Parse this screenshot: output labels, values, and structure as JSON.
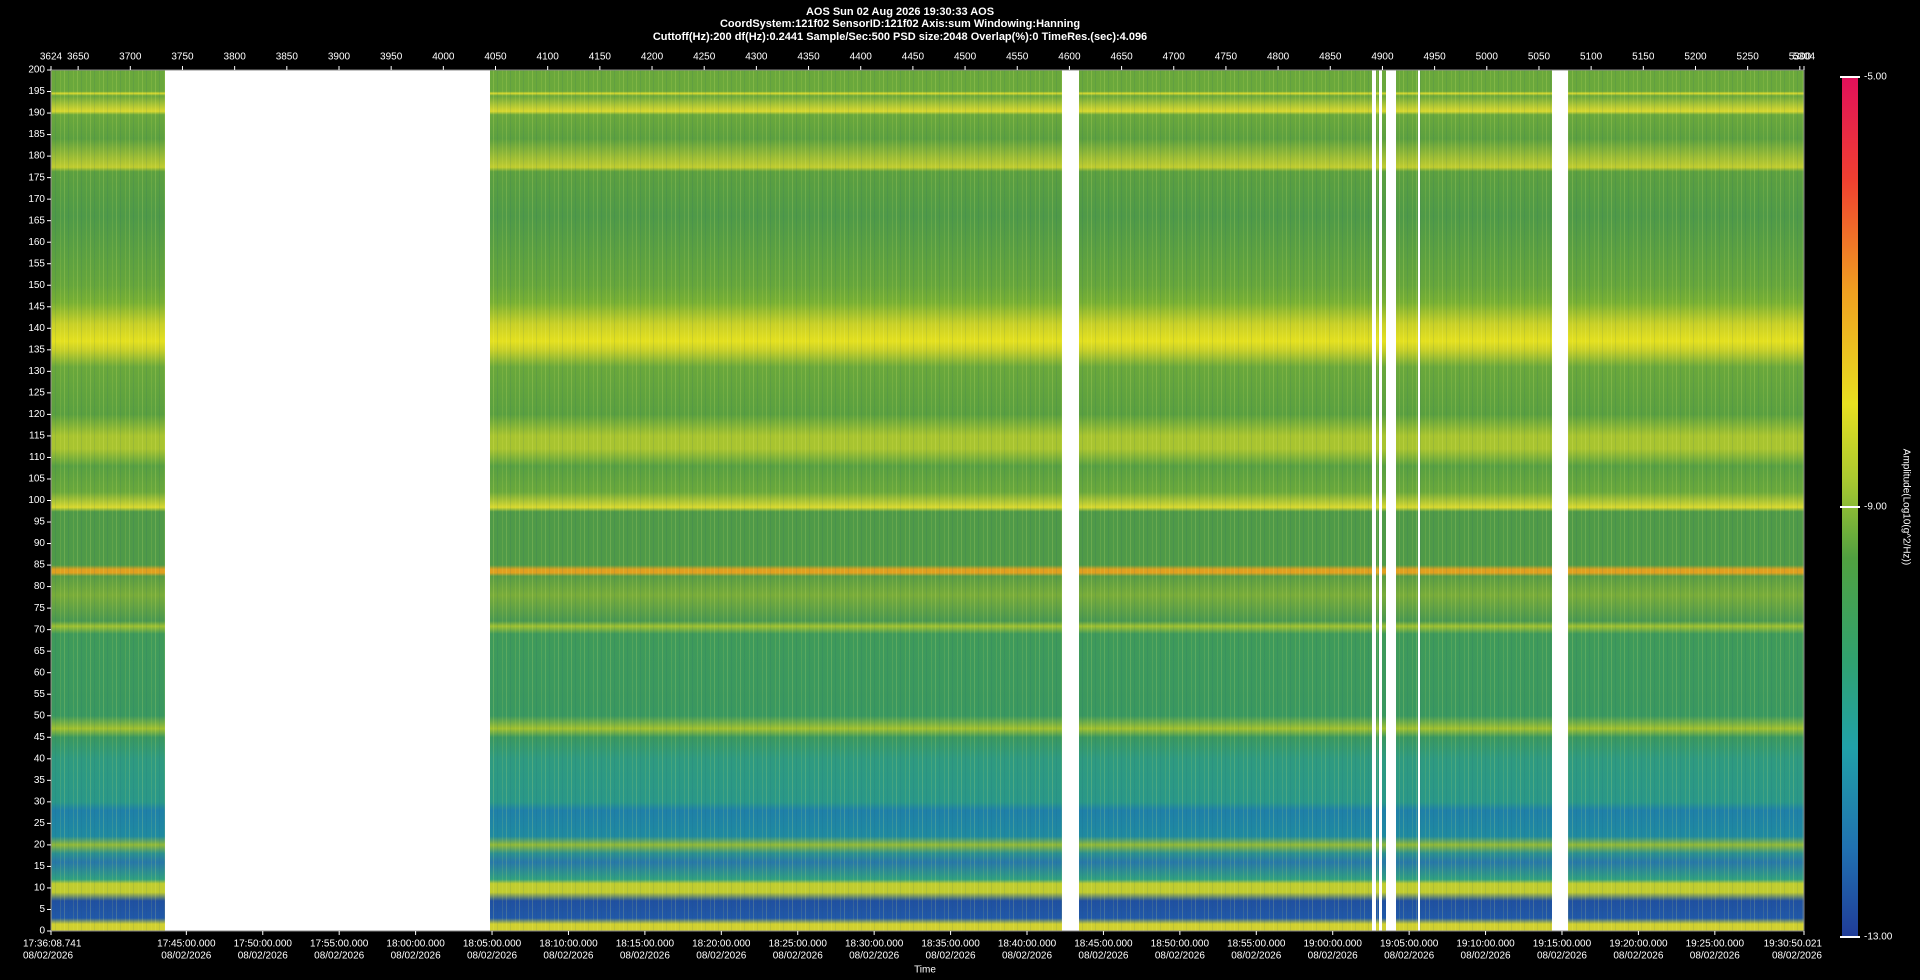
{
  "chart_data": {
    "type": "spectrogram",
    "title": "AOS  Sun 02 Aug 2026 19:30:33  AOS",
    "subtitle": "CoordSystem:121f02   SensorID:121f02    Axis:sum    Windowing:Hanning",
    "info": "Cuttoff(Hz):200    df(Hz):0.2441    Sample/Sec:500    PSD size:2048    Overlap(%):0    TimeRes.(sec):4.096",
    "xlabel": "Time",
    "colorbar_label": "Amplitude(Log10(g^2/Hz))",
    "xlim": [
      3624,
      5304
    ],
    "xticks": [
      3624,
      3650,
      3700,
      3750,
      3800,
      3850,
      3900,
      3950,
      4000,
      4050,
      4100,
      4150,
      4200,
      4250,
      4300,
      4350,
      4400,
      4450,
      4500,
      4550,
      4600,
      4650,
      4700,
      4750,
      4800,
      4850,
      4900,
      4950,
      5000,
      5050,
      5100,
      5150,
      5200,
      5250,
      5300,
      5304
    ],
    "x2lim": [
      63368.741,
      70250.021
    ],
    "x2ticks": [
      {
        "value": 63368.741,
        "label": "17:36:08.741",
        "date": "08/02/2026"
      },
      {
        "value": 63900,
        "label": "17:45:00.000",
        "date": "08/02/2026"
      },
      {
        "value": 64200,
        "label": "17:50:00.000",
        "date": "08/02/2026"
      },
      {
        "value": 64500,
        "label": "17:55:00.000",
        "date": "08/02/2026"
      },
      {
        "value": 64800,
        "label": "18:00:00.000",
        "date": "08/02/2026"
      },
      {
        "value": 65100,
        "label": "18:05:00.000",
        "date": "08/02/2026"
      },
      {
        "value": 65400,
        "label": "18:10:00.000",
        "date": "08/02/2026"
      },
      {
        "value": 65700,
        "label": "18:15:00.000",
        "date": "08/02/2026"
      },
      {
        "value": 66000,
        "label": "18:20:00.000",
        "date": "08/02/2026"
      },
      {
        "value": 66300,
        "label": "18:25:00.000",
        "date": "08/02/2026"
      },
      {
        "value": 66600,
        "label": "18:30:00.000",
        "date": "08/02/2026"
      },
      {
        "value": 66900,
        "label": "18:35:00.000",
        "date": "08/02/2026"
      },
      {
        "value": 67200,
        "label": "18:40:00.000",
        "date": "08/02/2026"
      },
      {
        "value": 67500,
        "label": "18:45:00.000",
        "date": "08/02/2026"
      },
      {
        "value": 67800,
        "label": "18:50:00.000",
        "date": "08/02/2026"
      },
      {
        "value": 68100,
        "label": "18:55:00.000",
        "date": "08/02/2026"
      },
      {
        "value": 68400,
        "label": "19:00:00.000",
        "date": "08/02/2026"
      },
      {
        "value": 68700,
        "label": "19:05:00.000",
        "date": "08/02/2026"
      },
      {
        "value": 69000,
        "label": "19:10:00.000",
        "date": "08/02/2026"
      },
      {
        "value": 69300,
        "label": "19:15:00.000",
        "date": "08/02/2026"
      },
      {
        "value": 69600,
        "label": "19:20:00.000",
        "date": "08/02/2026"
      },
      {
        "value": 69900,
        "label": "19:25:00.000",
        "date": "08/02/2026"
      },
      {
        "value": 70250.021,
        "label": "19:30:50.021",
        "date": "08/02/2026"
      }
    ],
    "ylim": [
      0,
      200
    ],
    "yticks": [
      0,
      5,
      10,
      15,
      20,
      25,
      30,
      35,
      40,
      45,
      50,
      55,
      60,
      65,
      70,
      75,
      80,
      85,
      90,
      95,
      100,
      105,
      110,
      115,
      120,
      125,
      130,
      135,
      140,
      145,
      150,
      155,
      160,
      165,
      170,
      175,
      180,
      185,
      190,
      195,
      200
    ],
    "clim": [
      -13,
      -5
    ],
    "cticks": [
      {
        "value": -5,
        "label": "-5.00"
      },
      {
        "value": -9,
        "label": "-9.00"
      },
      {
        "value": -13,
        "label": "-13.00"
      }
    ]
  }
}
